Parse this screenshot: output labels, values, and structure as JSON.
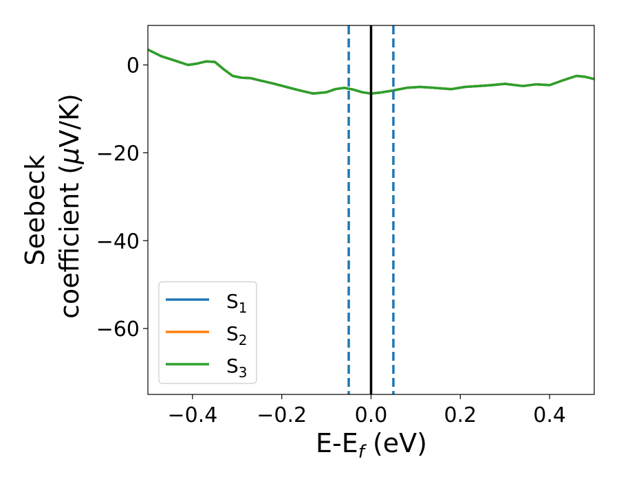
{
  "chart_data": {
    "type": "line",
    "xlabel": {
      "main": "E-E",
      "sub": "f",
      "tail": " (eV)"
    },
    "ylabel": {
      "line1": "Seebeck",
      "line2_pre": "coefficient  (",
      "mu": "μ",
      "line2_post": "V/K)"
    },
    "xlim": [
      -0.5,
      0.5
    ],
    "ylim": [
      -75,
      9
    ],
    "x_ticks": [
      -0.4,
      -0.2,
      0.0,
      0.2,
      0.4
    ],
    "x_tick_labels": [
      "−0.4",
      "−0.2",
      "0.0",
      "0.2",
      "0.4"
    ],
    "y_ticks": [
      0,
      -20,
      -40,
      -60
    ],
    "y_tick_labels": [
      "0",
      "−20",
      "−40",
      "−60"
    ],
    "grid": false,
    "legend_position": "lower-left",
    "vlines": [
      {
        "x": 0.0,
        "style": "solid",
        "color": "#000000"
      },
      {
        "x": -0.05,
        "style": "dashed",
        "color": "#1f77b4"
      },
      {
        "x": 0.05,
        "style": "dashed",
        "color": "#1f77b4"
      }
    ],
    "x": [
      -0.5,
      -0.47,
      -0.44,
      -0.41,
      -0.39,
      -0.37,
      -0.35,
      -0.33,
      -0.31,
      -0.29,
      -0.27,
      -0.25,
      -0.22,
      -0.19,
      -0.16,
      -0.13,
      -0.1,
      -0.08,
      -0.06,
      -0.04,
      -0.02,
      0.0,
      0.02,
      0.05,
      0.08,
      0.11,
      0.14,
      0.18,
      0.21,
      0.24,
      0.27,
      0.3,
      0.34,
      0.37,
      0.4,
      0.43,
      0.46,
      0.48,
      0.5
    ],
    "series": [
      {
        "name_base": "S",
        "name_sub": "1",
        "color": "#1f77b4",
        "values": [
          3.5,
          2.0,
          1.0,
          0.0,
          0.3,
          0.8,
          0.7,
          -1.0,
          -2.5,
          -2.9,
          -3.0,
          -3.5,
          -4.2,
          -5.0,
          -5.8,
          -6.5,
          -6.2,
          -5.5,
          -5.2,
          -5.6,
          -6.2,
          -6.5,
          -6.3,
          -5.8,
          -5.2,
          -5.0,
          -5.2,
          -5.5,
          -5.0,
          -4.8,
          -4.6,
          -4.3,
          -4.8,
          -4.4,
          -4.6,
          -3.5,
          -2.5,
          -2.7,
          -3.2
        ]
      },
      {
        "name_base": "S",
        "name_sub": "2",
        "color": "#ff7f0e",
        "values": [
          3.5,
          2.0,
          1.0,
          0.0,
          0.3,
          0.8,
          0.7,
          -1.0,
          -2.5,
          -2.9,
          -3.0,
          -3.5,
          -4.2,
          -5.0,
          -5.8,
          -6.5,
          -6.2,
          -5.5,
          -5.2,
          -5.6,
          -6.2,
          -6.5,
          -6.3,
          -5.8,
          -5.2,
          -5.0,
          -5.2,
          -5.5,
          -5.0,
          -4.8,
          -4.6,
          -4.3,
          -4.8,
          -4.4,
          -4.6,
          -3.5,
          -2.5,
          -2.7,
          -3.2
        ]
      },
      {
        "name_base": "S",
        "name_sub": "3",
        "color": "#2ca02c",
        "values": [
          3.5,
          2.0,
          1.0,
          0.0,
          0.3,
          0.8,
          0.7,
          -1.0,
          -2.5,
          -2.9,
          -3.0,
          -3.5,
          -4.2,
          -5.0,
          -5.8,
          -6.5,
          -6.2,
          -5.5,
          -5.2,
          -5.6,
          -6.2,
          -6.5,
          -6.3,
          -5.8,
          -5.2,
          -5.0,
          -5.2,
          -5.5,
          -5.0,
          -4.8,
          -4.6,
          -4.3,
          -4.8,
          -4.4,
          -4.6,
          -3.5,
          -2.5,
          -2.7,
          -3.2
        ]
      }
    ]
  }
}
